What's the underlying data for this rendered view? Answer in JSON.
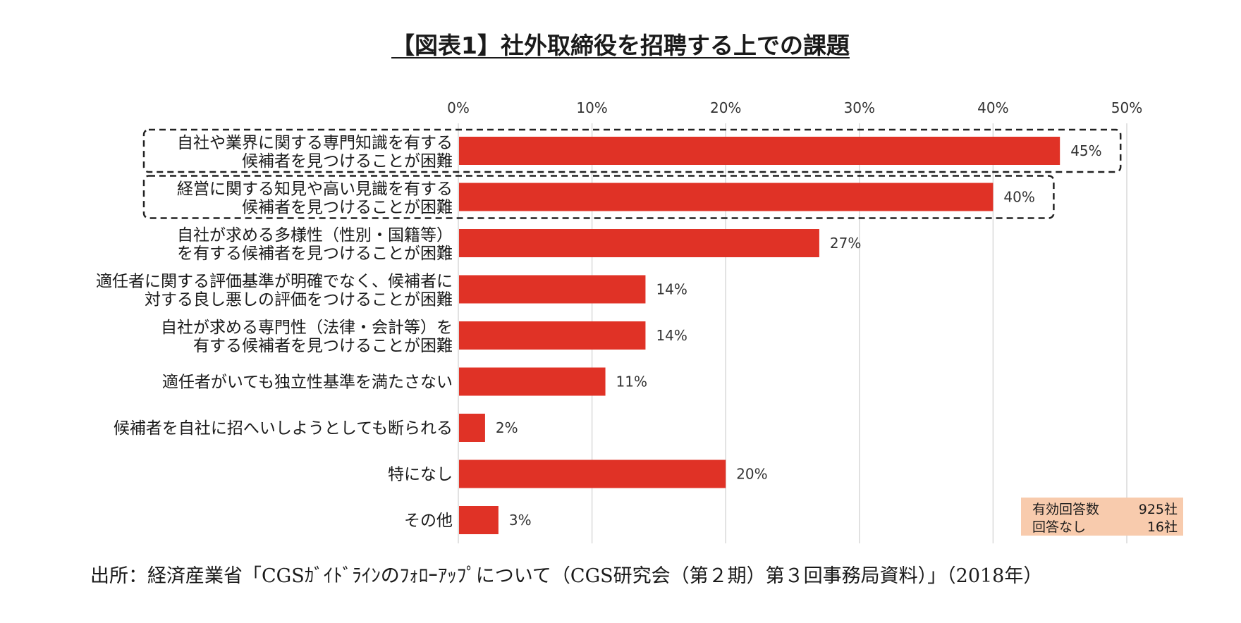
{
  "title": "【図表1】社外取締役を招聘する上での課題",
  "source": "出所：経済産業省「CGSｶﾞｲﾄﾞﾗｲﾝのﾌｫﾛｰｱｯﾌﾟについて（CGS研究会（第２期）第３回事務局資料）」（2018年）",
  "info_box": {
    "rows": [
      {
        "label": "有効回答数",
        "value": "925社"
      },
      {
        "label": "回答なし",
        "value": "16社"
      }
    ]
  },
  "colors": {
    "bar": "#e03226",
    "grid": "#d9d9d9",
    "info_bg": "#f8cbad"
  },
  "chart_data": {
    "type": "bar",
    "orientation": "horizontal",
    "categories": [
      "自社や業界に関する専門知識を有する\n候補者を見つけることが困難",
      "経営に関する知見や高い見識を有する\n候補者を見つけることが困難",
      "自社が求める多様性（性別・国籍等）\nを有する候補者を見つけることが困難",
      "適任者に関する評価基準が明確でなく、候補者に\n対する良し悪しの評価をつけることが困難",
      "自社が求める専門性（法律・会計等）を\n有する候補者を見つけることが困難",
      "適任者がいても独立性基準を満たさない",
      "候補者を自社に招へいしようとしても断られる",
      "特になし",
      "その他"
    ],
    "values": [
      45,
      40,
      27,
      14,
      14,
      11,
      2,
      20,
      3
    ],
    "value_labels": [
      "45%",
      "40%",
      "27%",
      "14%",
      "14%",
      "11%",
      "2%",
      "20%",
      "3%"
    ],
    "highlighted": [
      0,
      1
    ],
    "xlim": [
      0,
      50
    ],
    "xticks": [
      "0%",
      "10%",
      "20%",
      "30%",
      "40%",
      "50%"
    ],
    "axis_position": "top",
    "grid": true
  }
}
